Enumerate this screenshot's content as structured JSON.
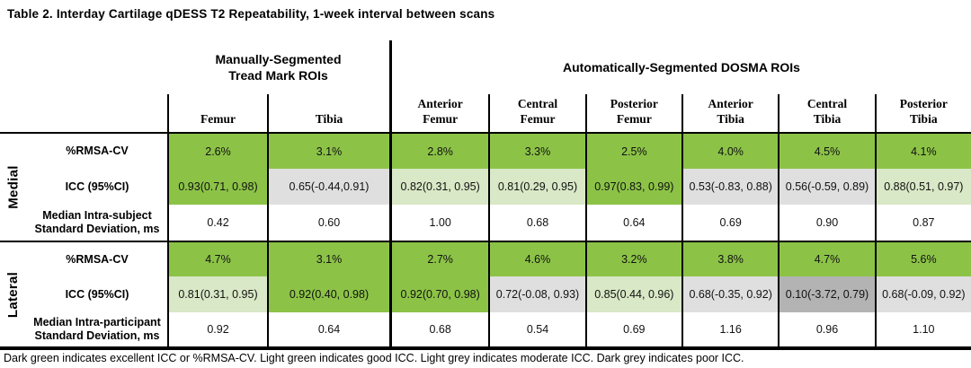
{
  "title": "Table 2. Interday Cartilage qDESS T2 Repeatability, 1-week interval between scans",
  "footnote": "Dark green indicates excellent ICC or %RMSA-CV. Light green indicates good ICC. Light grey indicates moderate ICC. Dark grey indicates poor ICC.",
  "colors": {
    "dark_green": "#8cc347",
    "light_green": "#d9e8c6",
    "light_grey": "#dfdfdf",
    "dark_grey": "#b3b3b3",
    "white": "#ffffff"
  },
  "table": {
    "group_headers": [
      {
        "label": "Manually-Segmented\nTread Mark ROIs",
        "span": 2
      },
      {
        "label": "Automatically-Segmented DOSMA ROIs",
        "span": 6
      }
    ],
    "columns": [
      "Femur",
      "Tibia",
      "Anterior\nFemur",
      "Central\nFemur",
      "Posterior\nFemur",
      "Anterior\nTibia",
      "Central\nTibia",
      "Posterior\nTibia"
    ],
    "sections": [
      {
        "label": "Medial",
        "rows": [
          {
            "label": "%RMSA-CV",
            "values": [
              "2.6%",
              "3.1%",
              "2.8%",
              "3.3%",
              "2.5%",
              "4.0%",
              "4.5%",
              "4.1%"
            ],
            "fills": [
              "dark_green",
              "dark_green",
              "dark_green",
              "dark_green",
              "dark_green",
              "dark_green",
              "dark_green",
              "dark_green"
            ]
          },
          {
            "label": "ICC (95%CI)",
            "values": [
              "0.93(0.71, 0.98)",
              "0.65(-0.44,0.91)",
              "0.82(0.31, 0.95)",
              "0.81(0.29, 0.95)",
              "0.97(0.83, 0.99)",
              "0.53(-0.83, 0.88)",
              "0.56(-0.59, 0.89)",
              "0.88(0.51, 0.97)"
            ],
            "fills": [
              "dark_green",
              "light_grey",
              "light_green",
              "light_green",
              "dark_green",
              "light_grey",
              "light_grey",
              "light_green"
            ]
          },
          {
            "label": "Median Intra-subject\nStandard Deviation, ms",
            "values": [
              "0.42",
              "0.60",
              "1.00",
              "0.68",
              "0.64",
              "0.69",
              "0.90",
              "0.87"
            ],
            "fills": [
              "white",
              "white",
              "white",
              "white",
              "white",
              "white",
              "white",
              "white"
            ]
          }
        ]
      },
      {
        "label": "Lateral",
        "rows": [
          {
            "label": "%RMSA-CV",
            "values": [
              "4.7%",
              "3.1%",
              "2.7%",
              "4.6%",
              "3.2%",
              "3.8%",
              "4.7%",
              "5.6%"
            ],
            "fills": [
              "dark_green",
              "dark_green",
              "dark_green",
              "dark_green",
              "dark_green",
              "dark_green",
              "dark_green",
              "dark_green"
            ]
          },
          {
            "label": "ICC (95%CI)",
            "values": [
              "0.81(0.31, 0.95)",
              "0.92(0.40, 0.98)",
              "0.92(0.70, 0.98)",
              "0.72(-0.08, 0.93)",
              "0.85(0.44, 0.96)",
              "0.68(-0.35, 0.92)",
              "0.10(-3.72, 0.79)",
              "0.68(-0.09, 0.92)"
            ],
            "fills": [
              "light_green",
              "dark_green",
              "dark_green",
              "light_grey",
              "light_green",
              "light_grey",
              "dark_grey",
              "light_grey"
            ]
          },
          {
            "label": "Median Intra-participant\nStandard Deviation, ms",
            "values": [
              "0.92",
              "0.64",
              "0.68",
              "0.54",
              "0.69",
              "1.16",
              "0.96",
              "1.10"
            ],
            "fills": [
              "white",
              "white",
              "white",
              "white",
              "white",
              "white",
              "white",
              "white"
            ]
          }
        ]
      }
    ]
  }
}
